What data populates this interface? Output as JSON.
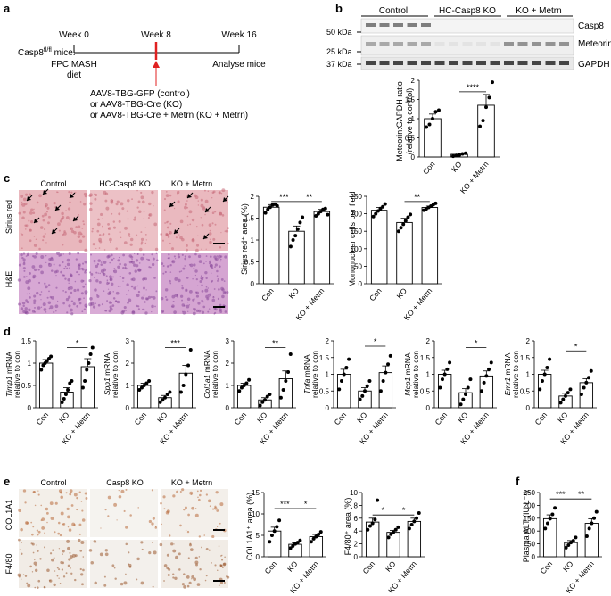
{
  "panels": {
    "a": "a",
    "b": "b",
    "c": "c",
    "d": "d",
    "e": "e",
    "f": "f"
  },
  "panel_a": {
    "week0": "Week 0",
    "week8": "Week 8",
    "week16": "Week 16",
    "mice_prefix": "Casp8",
    "mice_sup": "fl/fl",
    "mice_suffix": " mice:",
    "diet_line1": "FPC MASH",
    "diet_line2": "diet",
    "analyse": "Analyse mice",
    "treat1": "AAV8-TBG-GFP (control)",
    "treat2": "or AAV8-TBG-Cre (KO)",
    "treat3": "or AAV8-TBG-Cre + Metrn (KO + Metrn)"
  },
  "panel_b": {
    "groups": [
      "Control",
      "HC-Casp8 KO",
      "KO + Metrn"
    ],
    "blots": [
      "Casp8",
      "Meteorin",
      "GAPDH"
    ],
    "kda": [
      "50 kDa",
      "25 kDa",
      "37 kDa"
    ],
    "ylabel1": "Meteorin:GAPDH ratio",
    "ylabel2": "(relative to control)",
    "sig": "****"
  },
  "panel_c": {
    "groups": [
      "Control",
      "HC-Casp8 KO",
      "KO + Metrn"
    ],
    "rows": [
      "Sirius red",
      "H&E"
    ],
    "ylabel_sirius": "Sirius red⁺ area (%)",
    "ylabel_mono": "Mononuclear cells per field",
    "sig1": "***",
    "sig2": "**",
    "sig3": "**"
  },
  "panel_d": {
    "genes": [
      {
        "gene": "Timp1",
        "suffix": " mRNA",
        "sub": "relative to con",
        "sig": "*"
      },
      {
        "gene": "Spp1",
        "suffix": " mRNA",
        "sub": "relative to con",
        "sig": "***"
      },
      {
        "gene": "Col1a1",
        "suffix": " mRNA",
        "sub": "relative to con",
        "sig": "**"
      },
      {
        "gene": "Tnfa",
        "suffix": " mRNA",
        "sub": "relative to con",
        "sig": "*"
      },
      {
        "gene": "Mcp1",
        "suffix": " mRNA",
        "sub": "relative to con",
        "sig": "*"
      },
      {
        "gene": "Emr1",
        "suffix": " mRNA",
        "sub": "relative to con",
        "sig": "*"
      }
    ]
  },
  "panel_e": {
    "groups": [
      "Control",
      "Casp8 KO",
      "KO + Metrn"
    ],
    "rows": [
      "COL1A1",
      "F4/80"
    ],
    "ylabel_col": "COL1A1⁺ area (%)",
    "ylabel_f480": "F4/80⁺ area (%)",
    "sig1": "***",
    "sig2": "*",
    "sig3": "*",
    "sig4": "*"
  },
  "panel_f": {
    "ylabel": "Plasma ALT (IU L⁻¹)",
    "sig1": "***",
    "sig2": "**"
  },
  "xcats": [
    "Con",
    "KO",
    "KO + Metrn"
  ],
  "colors": {
    "bar_edge": "#000000",
    "dot": "#000000",
    "arrow_red": "#e02020",
    "sirius": "#e9b7bd",
    "he": "#d7a8d4",
    "ihc": "#f3efe9"
  },
  "chart_data": [
    {
      "type": "bar",
      "id": "b_meteorin",
      "categories": [
        "Con",
        "KO",
        "KO + Metrn"
      ],
      "values": [
        1.0,
        0.07,
        1.35
      ],
      "errors": [
        0.12,
        0.03,
        0.28
      ],
      "ylim": [
        0,
        2
      ],
      "yticks": [
        0,
        0.5,
        1.0,
        1.5,
        2.0
      ],
      "points": [
        [
          0.78,
          0.85,
          1.0,
          1.18,
          1.22
        ],
        [
          0.02,
          0.04,
          0.05,
          0.08,
          0.1
        ],
        [
          0.8,
          0.95,
          1.3,
          1.55,
          1.95
        ]
      ]
    },
    {
      "type": "bar",
      "id": "c_sirius",
      "categories": [
        "Con",
        "KO",
        "KO + Metrn"
      ],
      "values": [
        1.75,
        1.2,
        1.65
      ],
      "errors": [
        0.06,
        0.12,
        0.05
      ],
      "ylim": [
        0,
        2
      ],
      "yticks": [
        0,
        0.5,
        1.0,
        1.5,
        2.0
      ],
      "points": [
        [
          1.62,
          1.7,
          1.75,
          1.8,
          1.82,
          1.78
        ],
        [
          0.85,
          1.0,
          1.1,
          1.25,
          1.4,
          1.52
        ],
        [
          1.55,
          1.6,
          1.65,
          1.7,
          1.72,
          1.58
        ]
      ]
    },
    {
      "type": "bar",
      "id": "c_mono",
      "categories": [
        "Con",
        "KO",
        "KO + Metrn"
      ],
      "values": [
        210,
        175,
        218
      ],
      "errors": [
        8,
        12,
        4
      ],
      "ylim": [
        0,
        250
      ],
      "yticks": [
        0,
        50,
        100,
        150,
        200,
        250
      ],
      "points": [
        [
          192,
          200,
          208,
          215,
          220,
          228
        ],
        [
          150,
          160,
          170,
          180,
          190,
          198
        ],
        [
          210,
          214,
          218,
          222,
          226,
          230
        ]
      ]
    },
    {
      "type": "bar",
      "id": "d_timp1",
      "categories": [
        "Con",
        "KO",
        "KO + Metrn"
      ],
      "values": [
        1.0,
        0.35,
        0.92
      ],
      "errors": [
        0.08,
        0.1,
        0.18
      ],
      "ylim": [
        0,
        1.5
      ],
      "yticks": [
        0,
        0.5,
        1.0,
        1.5
      ],
      "points": [
        [
          0.85,
          0.95,
          1.0,
          1.05,
          1.1,
          1.15
        ],
        [
          0.12,
          0.2,
          0.3,
          0.4,
          0.55,
          0.6
        ],
        [
          0.45,
          0.6,
          0.85,
          1.0,
          1.2,
          1.35
        ]
      ]
    },
    {
      "type": "bar",
      "id": "d_spp1",
      "categories": [
        "Con",
        "KO",
        "KO + Metrn"
      ],
      "values": [
        1.0,
        0.45,
        1.55
      ],
      "errors": [
        0.1,
        0.1,
        0.35
      ],
      "ylim": [
        0,
        3
      ],
      "yticks": [
        0,
        1,
        2,
        3
      ],
      "points": [
        [
          0.8,
          0.9,
          1.0,
          1.1,
          1.2
        ],
        [
          0.25,
          0.35,
          0.45,
          0.6,
          0.7
        ],
        [
          0.7,
          1.0,
          1.5,
          1.9,
          2.6
        ]
      ]
    },
    {
      "type": "bar",
      "id": "d_col1a1",
      "categories": [
        "Con",
        "KO",
        "KO + Metrn"
      ],
      "values": [
        1.0,
        0.35,
        1.3
      ],
      "errors": [
        0.1,
        0.1,
        0.35
      ],
      "ylim": [
        0,
        3
      ],
      "yticks": [
        0,
        1,
        2,
        3
      ],
      "points": [
        [
          0.75,
          0.9,
          1.0,
          1.1,
          1.25
        ],
        [
          0.1,
          0.25,
          0.35,
          0.5,
          0.6
        ],
        [
          0.45,
          0.8,
          1.2,
          1.6,
          2.4
        ]
      ]
    },
    {
      "type": "bar",
      "id": "d_tnfa",
      "categories": [
        "Con",
        "KO",
        "KO + Metrn"
      ],
      "values": [
        1.0,
        0.5,
        1.05
      ],
      "errors": [
        0.15,
        0.1,
        0.2
      ],
      "ylim": [
        0,
        2
      ],
      "yticks": [
        0,
        0.5,
        1.0,
        1.5,
        2.0
      ],
      "points": [
        [
          0.55,
          0.8,
          1.0,
          1.2,
          1.45
        ],
        [
          0.25,
          0.35,
          0.5,
          0.65,
          0.8
        ],
        [
          0.5,
          0.8,
          1.05,
          1.3,
          1.55
        ]
      ]
    },
    {
      "type": "bar",
      "id": "d_mcp1",
      "categories": [
        "Con",
        "KO",
        "KO + Metrn"
      ],
      "values": [
        1.0,
        0.45,
        0.95
      ],
      "errors": [
        0.12,
        0.12,
        0.15
      ],
      "ylim": [
        0,
        2
      ],
      "yticks": [
        0,
        0.5,
        1.0,
        1.5,
        2.0
      ],
      "points": [
        [
          0.6,
          0.85,
          1.0,
          1.15,
          1.35
        ],
        [
          0.1,
          0.25,
          0.4,
          0.6,
          0.85
        ],
        [
          0.5,
          0.75,
          0.95,
          1.15,
          1.35
        ]
      ]
    },
    {
      "type": "bar",
      "id": "d_emr1",
      "categories": [
        "Con",
        "KO",
        "KO + Metrn"
      ],
      "values": [
        1.0,
        0.35,
        0.75
      ],
      "errors": [
        0.12,
        0.08,
        0.12
      ],
      "ylim": [
        0,
        2
      ],
      "yticks": [
        0,
        0.5,
        1.0,
        1.5,
        2.0
      ],
      "points": [
        [
          0.55,
          0.8,
          1.0,
          1.2,
          1.45
        ],
        [
          0.15,
          0.25,
          0.35,
          0.45,
          0.55
        ],
        [
          0.4,
          0.6,
          0.75,
          0.9,
          1.1
        ]
      ]
    },
    {
      "type": "bar",
      "id": "e_col1a1",
      "categories": [
        "Con",
        "KO",
        "KO + Metrn"
      ],
      "values": [
        6.0,
        2.9,
        4.7
      ],
      "errors": [
        0.9,
        0.4,
        0.5
      ],
      "ylim": [
        0,
        15
      ],
      "yticks": [
        0,
        5,
        10,
        15
      ],
      "points": [
        [
          3.5,
          5,
          6,
          7,
          8.5
        ],
        [
          2,
          2.5,
          3,
          3.3,
          3.8
        ],
        [
          3.5,
          4.2,
          4.7,
          5.2,
          5.8
        ]
      ]
    },
    {
      "type": "bar",
      "id": "e_f480",
      "categories": [
        "Con",
        "KO",
        "KO + Metrn"
      ],
      "values": [
        5.4,
        3.8,
        5.5
      ],
      "errors": [
        0.6,
        0.3,
        0.5
      ],
      "ylim": [
        0,
        10
      ],
      "yticks": [
        0,
        2,
        4,
        6,
        8,
        10
      ],
      "points": [
        [
          4.2,
          4.8,
          5.2,
          5.8,
          8.8
        ],
        [
          3.0,
          3.5,
          3.8,
          4.2,
          4.6
        ],
        [
          4.4,
          5.0,
          5.5,
          6.0,
          6.8
        ]
      ]
    },
    {
      "type": "bar",
      "id": "f_alt",
      "categories": [
        "Con",
        "KO",
        "KO + Metrn"
      ],
      "values": [
        148,
        55,
        130
      ],
      "errors": [
        15,
        8,
        18
      ],
      "ylim": [
        0,
        250
      ],
      "yticks": [
        0,
        50,
        100,
        150,
        200,
        250
      ],
      "points": [
        [
          110,
          130,
          148,
          165,
          190
        ],
        [
          35,
          45,
          55,
          62,
          75
        ],
        [
          80,
          110,
          130,
          150,
          175
        ]
      ]
    }
  ]
}
